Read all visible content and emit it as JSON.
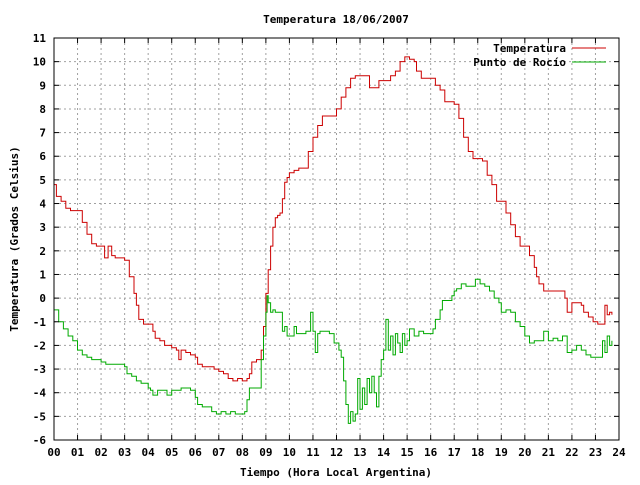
{
  "chart_data": {
    "type": "line",
    "title": "Temperatura 18/06/2007",
    "xlabel": "Tiempo (Hora Local Argentina)",
    "ylabel": "Temperatura (Grados Celsius)",
    "xlim": [
      0,
      24
    ],
    "ylim": [
      -6,
      11
    ],
    "x_ticks": [
      "00",
      "01",
      "02",
      "03",
      "04",
      "05",
      "06",
      "07",
      "08",
      "09",
      "10",
      "11",
      "12",
      "13",
      "14",
      "15",
      "16",
      "17",
      "18",
      "19",
      "20",
      "21",
      "22",
      "23",
      "24"
    ],
    "y_ticks": [
      -6,
      -5,
      -4,
      -3,
      -2,
      -1,
      0,
      1,
      2,
      3,
      4,
      5,
      6,
      7,
      8,
      9,
      10,
      11
    ],
    "grid": true,
    "legend_position": "top-right",
    "series": [
      {
        "name": "Temperatura",
        "color": "#cc0000",
        "points": [
          [
            0.0,
            4.8
          ],
          [
            0.1,
            4.3
          ],
          [
            0.3,
            4.1
          ],
          [
            0.5,
            3.8
          ],
          [
            0.7,
            3.7
          ],
          [
            1.0,
            3.7
          ],
          [
            1.2,
            3.2
          ],
          [
            1.4,
            2.7
          ],
          [
            1.6,
            2.3
          ],
          [
            1.8,
            2.2
          ],
          [
            2.0,
            2.2
          ],
          [
            2.15,
            1.7
          ],
          [
            2.3,
            2.2
          ],
          [
            2.45,
            1.8
          ],
          [
            2.6,
            1.7
          ],
          [
            2.8,
            1.7
          ],
          [
            3.0,
            1.6
          ],
          [
            3.2,
            0.9
          ],
          [
            3.4,
            0.2
          ],
          [
            3.5,
            -0.3
          ],
          [
            3.6,
            -0.9
          ],
          [
            3.8,
            -1.1
          ],
          [
            4.0,
            -1.1
          ],
          [
            4.2,
            -1.4
          ],
          [
            4.3,
            -1.7
          ],
          [
            4.5,
            -1.8
          ],
          [
            4.7,
            -2.0
          ],
          [
            5.0,
            -2.1
          ],
          [
            5.2,
            -2.2
          ],
          [
            5.3,
            -2.6
          ],
          [
            5.4,
            -2.2
          ],
          [
            5.6,
            -2.3
          ],
          [
            5.8,
            -2.4
          ],
          [
            6.0,
            -2.5
          ],
          [
            6.1,
            -2.8
          ],
          [
            6.3,
            -2.9
          ],
          [
            6.5,
            -2.9
          ],
          [
            6.8,
            -3.0
          ],
          [
            7.0,
            -3.1
          ],
          [
            7.2,
            -3.2
          ],
          [
            7.4,
            -3.4
          ],
          [
            7.6,
            -3.5
          ],
          [
            7.8,
            -3.4
          ],
          [
            8.0,
            -3.5
          ],
          [
            8.2,
            -3.4
          ],
          [
            8.3,
            -3.2
          ],
          [
            8.4,
            -2.7
          ],
          [
            8.6,
            -2.6
          ],
          [
            8.8,
            -2.2
          ],
          [
            8.9,
            -1.2
          ],
          [
            9.0,
            0.2
          ],
          [
            9.1,
            1.2
          ],
          [
            9.2,
            2.2
          ],
          [
            9.3,
            3.0
          ],
          [
            9.4,
            3.4
          ],
          [
            9.5,
            3.5
          ],
          [
            9.6,
            3.6
          ],
          [
            9.7,
            4.2
          ],
          [
            9.8,
            4.9
          ],
          [
            9.9,
            5.1
          ],
          [
            10.0,
            5.3
          ],
          [
            10.2,
            5.4
          ],
          [
            10.4,
            5.5
          ],
          [
            10.6,
            5.5
          ],
          [
            10.8,
            6.2
          ],
          [
            11.0,
            6.8
          ],
          [
            11.2,
            7.3
          ],
          [
            11.4,
            7.7
          ],
          [
            11.7,
            7.7
          ],
          [
            11.9,
            7.7
          ],
          [
            12.0,
            8.0
          ],
          [
            12.2,
            8.5
          ],
          [
            12.4,
            8.9
          ],
          [
            12.6,
            9.3
          ],
          [
            12.8,
            9.4
          ],
          [
            13.0,
            9.4
          ],
          [
            13.2,
            9.4
          ],
          [
            13.4,
            8.9
          ],
          [
            13.6,
            8.9
          ],
          [
            13.8,
            9.2
          ],
          [
            14.0,
            9.2
          ],
          [
            14.3,
            9.4
          ],
          [
            14.5,
            9.6
          ],
          [
            14.7,
            10.0
          ],
          [
            14.9,
            10.2
          ],
          [
            15.0,
            10.2
          ],
          [
            15.1,
            10.1
          ],
          [
            15.3,
            10.0
          ],
          [
            15.4,
            9.6
          ],
          [
            15.6,
            9.3
          ],
          [
            15.8,
            9.3
          ],
          [
            16.0,
            9.3
          ],
          [
            16.2,
            9.0
          ],
          [
            16.4,
            8.8
          ],
          [
            16.6,
            8.3
          ],
          [
            16.8,
            8.3
          ],
          [
            17.0,
            8.2
          ],
          [
            17.2,
            7.6
          ],
          [
            17.4,
            6.8
          ],
          [
            17.6,
            6.2
          ],
          [
            17.8,
            5.9
          ],
          [
            18.0,
            5.9
          ],
          [
            18.2,
            5.8
          ],
          [
            18.4,
            5.2
          ],
          [
            18.6,
            4.8
          ],
          [
            18.8,
            4.1
          ],
          [
            19.0,
            4.1
          ],
          [
            19.2,
            3.6
          ],
          [
            19.4,
            3.1
          ],
          [
            19.6,
            2.6
          ],
          [
            19.8,
            2.2
          ],
          [
            20.0,
            2.2
          ],
          [
            20.2,
            1.8
          ],
          [
            20.4,
            1.3
          ],
          [
            20.5,
            0.9
          ],
          [
            20.6,
            0.6
          ],
          [
            20.8,
            0.3
          ],
          [
            21.0,
            0.3
          ],
          [
            21.3,
            0.3
          ],
          [
            21.5,
            0.3
          ],
          [
            21.7,
            0.0
          ],
          [
            21.8,
            -0.6
          ],
          [
            22.0,
            -0.2
          ],
          [
            22.2,
            -0.2
          ],
          [
            22.4,
            -0.3
          ],
          [
            22.5,
            -0.6
          ],
          [
            22.7,
            -0.8
          ],
          [
            22.9,
            -1.0
          ],
          [
            23.1,
            -1.1
          ],
          [
            23.3,
            -1.1
          ],
          [
            23.4,
            -0.3
          ],
          [
            23.5,
            -0.7
          ],
          [
            23.6,
            -0.6
          ],
          [
            23.7,
            -0.7
          ]
        ]
      },
      {
        "name": "Punto de Rocío",
        "color": "#00aa00",
        "points": [
          [
            0.0,
            -0.5
          ],
          [
            0.2,
            -1.0
          ],
          [
            0.4,
            -1.3
          ],
          [
            0.6,
            -1.6
          ],
          [
            0.8,
            -1.8
          ],
          [
            1.0,
            -2.2
          ],
          [
            1.2,
            -2.4
          ],
          [
            1.4,
            -2.5
          ],
          [
            1.6,
            -2.6
          ],
          [
            1.8,
            -2.6
          ],
          [
            2.0,
            -2.7
          ],
          [
            2.2,
            -2.8
          ],
          [
            2.4,
            -2.8
          ],
          [
            2.6,
            -2.8
          ],
          [
            2.8,
            -2.8
          ],
          [
            3.0,
            -2.9
          ],
          [
            3.1,
            -3.2
          ],
          [
            3.3,
            -3.3
          ],
          [
            3.5,
            -3.5
          ],
          [
            3.7,
            -3.6
          ],
          [
            3.9,
            -3.6
          ],
          [
            4.0,
            -3.8
          ],
          [
            4.1,
            -3.9
          ],
          [
            4.2,
            -4.1
          ],
          [
            4.4,
            -3.9
          ],
          [
            4.6,
            -3.9
          ],
          [
            4.8,
            -4.1
          ],
          [
            5.0,
            -3.9
          ],
          [
            5.2,
            -3.9
          ],
          [
            5.4,
            -3.8
          ],
          [
            5.6,
            -3.8
          ],
          [
            5.8,
            -3.9
          ],
          [
            6.0,
            -4.2
          ],
          [
            6.1,
            -4.5
          ],
          [
            6.3,
            -4.6
          ],
          [
            6.5,
            -4.6
          ],
          [
            6.7,
            -4.8
          ],
          [
            6.9,
            -4.9
          ],
          [
            7.1,
            -4.8
          ],
          [
            7.3,
            -4.9
          ],
          [
            7.5,
            -4.8
          ],
          [
            7.7,
            -4.9
          ],
          [
            7.9,
            -4.9
          ],
          [
            8.1,
            -4.8
          ],
          [
            8.2,
            -4.3
          ],
          [
            8.3,
            -3.8
          ],
          [
            8.5,
            -3.8
          ],
          [
            8.7,
            -3.8
          ],
          [
            8.8,
            -2.6
          ],
          [
            8.9,
            -1.6
          ],
          [
            9.0,
            -0.6
          ],
          [
            9.05,
            0.1
          ],
          [
            9.1,
            -0.2
          ],
          [
            9.2,
            -0.6
          ],
          [
            9.3,
            -0.5
          ],
          [
            9.4,
            -0.6
          ],
          [
            9.6,
            -0.6
          ],
          [
            9.7,
            -1.4
          ],
          [
            9.8,
            -1.2
          ],
          [
            9.9,
            -1.6
          ],
          [
            10.0,
            -1.6
          ],
          [
            10.2,
            -1.2
          ],
          [
            10.3,
            -1.5
          ],
          [
            10.5,
            -1.5
          ],
          [
            10.7,
            -1.4
          ],
          [
            10.9,
            -0.6
          ],
          [
            11.0,
            -1.4
          ],
          [
            11.1,
            -2.3
          ],
          [
            11.2,
            -1.5
          ],
          [
            11.3,
            -1.4
          ],
          [
            11.5,
            -1.4
          ],
          [
            11.7,
            -1.5
          ],
          [
            11.9,
            -1.9
          ],
          [
            12.1,
            -2.2
          ],
          [
            12.2,
            -2.5
          ],
          [
            12.3,
            -3.5
          ],
          [
            12.4,
            -4.5
          ],
          [
            12.5,
            -5.3
          ],
          [
            12.6,
            -4.8
          ],
          [
            12.7,
            -5.2
          ],
          [
            12.8,
            -4.9
          ],
          [
            12.9,
            -3.4
          ],
          [
            13.0,
            -4.7
          ],
          [
            13.1,
            -3.8
          ],
          [
            13.2,
            -4.5
          ],
          [
            13.3,
            -3.4
          ],
          [
            13.4,
            -4.0
          ],
          [
            13.5,
            -3.3
          ],
          [
            13.6,
            -4.0
          ],
          [
            13.7,
            -4.6
          ],
          [
            13.8,
            -3.3
          ],
          [
            13.9,
            -2.6
          ],
          [
            14.0,
            -2.2
          ],
          [
            14.1,
            -0.9
          ],
          [
            14.2,
            -2.2
          ],
          [
            14.3,
            -1.6
          ],
          [
            14.4,
            -2.4
          ],
          [
            14.5,
            -1.5
          ],
          [
            14.6,
            -1.9
          ],
          [
            14.7,
            -2.3
          ],
          [
            14.8,
            -1.5
          ],
          [
            14.9,
            -2.0
          ],
          [
            15.0,
            -1.8
          ],
          [
            15.1,
            -1.3
          ],
          [
            15.3,
            -1.6
          ],
          [
            15.5,
            -1.4
          ],
          [
            15.7,
            -1.5
          ],
          [
            15.9,
            -1.5
          ],
          [
            16.1,
            -1.3
          ],
          [
            16.2,
            -0.9
          ],
          [
            16.4,
            -0.5
          ],
          [
            16.5,
            -0.1
          ],
          [
            16.7,
            -0.1
          ],
          [
            16.9,
            0.1
          ],
          [
            17.0,
            0.3
          ],
          [
            17.1,
            0.4
          ],
          [
            17.3,
            0.6
          ],
          [
            17.5,
            0.5
          ],
          [
            17.7,
            0.5
          ],
          [
            17.9,
            0.8
          ],
          [
            18.1,
            0.6
          ],
          [
            18.3,
            0.5
          ],
          [
            18.5,
            0.3
          ],
          [
            18.7,
            0.0
          ],
          [
            18.9,
            -0.2
          ],
          [
            19.0,
            -0.6
          ],
          [
            19.2,
            -0.5
          ],
          [
            19.4,
            -0.6
          ],
          [
            19.6,
            -1.0
          ],
          [
            19.8,
            -1.2
          ],
          [
            20.0,
            -1.6
          ],
          [
            20.2,
            -1.9
          ],
          [
            20.4,
            -1.8
          ],
          [
            20.6,
            -1.8
          ],
          [
            20.8,
            -1.4
          ],
          [
            21.0,
            -1.8
          ],
          [
            21.2,
            -1.7
          ],
          [
            21.4,
            -1.8
          ],
          [
            21.6,
            -1.6
          ],
          [
            21.8,
            -2.3
          ],
          [
            22.0,
            -2.2
          ],
          [
            22.2,
            -2.0
          ],
          [
            22.4,
            -2.2
          ],
          [
            22.6,
            -2.4
          ],
          [
            22.8,
            -2.5
          ],
          [
            23.0,
            -2.5
          ],
          [
            23.2,
            -2.5
          ],
          [
            23.3,
            -1.8
          ],
          [
            23.4,
            -2.3
          ],
          [
            23.5,
            -1.6
          ],
          [
            23.6,
            -2.0
          ],
          [
            23.7,
            -1.8
          ]
        ]
      }
    ]
  }
}
